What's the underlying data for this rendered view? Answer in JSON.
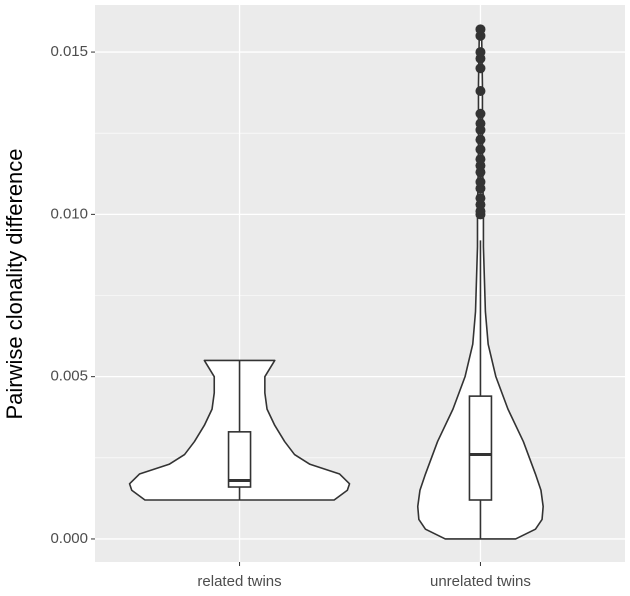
{
  "chart_data": {
    "type": "violin",
    "y_label": "Pairwise clonality difference",
    "categories": [
      "related twins",
      "unrelated twins"
    ],
    "ylim": [
      -0.00071,
      0.01645
    ],
    "yticks": [
      {
        "value": 0,
        "label": "0.000"
      },
      {
        "value": 0.005,
        "label": "0.005"
      },
      {
        "value": 0.01,
        "label": "0.010"
      },
      {
        "value": 0.015,
        "label": "0.015"
      }
    ],
    "y_minor_ticks": [
      0.0025,
      0.0075,
      0.0125
    ],
    "grid": true,
    "violins": [
      {
        "y": [
          0.0012,
          0.0015,
          0.0017,
          0.002,
          0.0023,
          0.0026,
          0.003,
          0.0035,
          0.004,
          0.0045,
          0.005,
          0.0055
        ],
        "density": [
          0.86,
          0.98,
          1.0,
          0.91,
          0.64,
          0.5,
          0.41,
          0.32,
          0.25,
          0.23,
          0.23,
          0.32
        ]
      },
      {
        "y": [
          0,
          0.0003,
          0.0006,
          0.001,
          0.0015,
          0.002,
          0.003,
          0.004,
          0.005,
          0.006,
          0.007,
          0.008,
          0.009,
          0.01,
          0.012,
          0.014,
          0.0157
        ],
        "density": [
          0.32,
          0.5,
          0.56,
          0.57,
          0.55,
          0.5,
          0.39,
          0.25,
          0.14,
          0.07,
          0.045,
          0.036,
          0.027,
          0.027,
          0.018,
          0.018,
          0.01
        ]
      }
    ],
    "boxes": [
      {
        "min": 0.0012,
        "q1": 0.0016,
        "median": 0.0018,
        "q3": 0.0033,
        "max": 0.0055,
        "outliers": []
      },
      {
        "min": 0,
        "q1": 0.0012,
        "median": 0.0026,
        "q3": 0.0044,
        "max": 0.0092,
        "outliers": [
          0.01,
          0.0101,
          0.0103,
          0.0105,
          0.0108,
          0.011,
          0.0113,
          0.0115,
          0.0117,
          0.012,
          0.0123,
          0.0126,
          0.0128,
          0.0131,
          0.0138,
          0.0145,
          0.0148,
          0.015,
          0.0155,
          0.0157
        ]
      }
    ]
  }
}
